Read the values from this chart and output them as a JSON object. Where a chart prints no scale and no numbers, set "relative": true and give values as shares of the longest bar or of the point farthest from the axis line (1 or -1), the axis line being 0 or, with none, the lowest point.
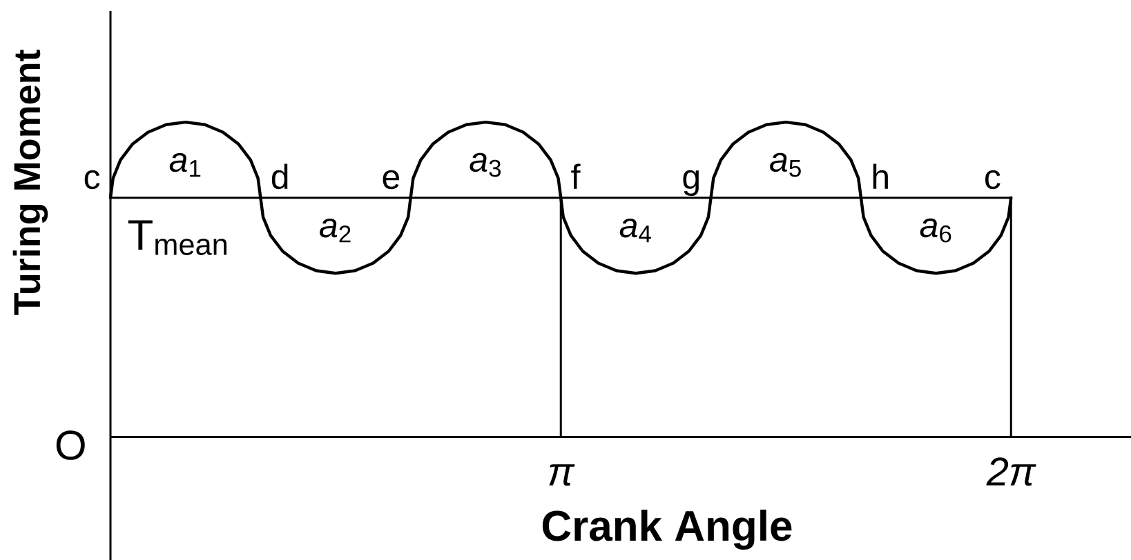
{
  "chart_data": {
    "type": "line",
    "xlabel": "Crank Angle",
    "ylabel": "Turing Moment",
    "relative": true,
    "x": [
      0,
      0.018,
      0.07,
      0.153,
      0.262,
      0.388,
      0.524,
      0.659,
      0.785,
      0.894,
      0.977,
      1.029,
      1.047,
      1.065,
      1.117,
      1.201,
      1.309,
      1.435,
      1.571,
      1.706,
      1.833,
      1.941,
      2.024,
      2.077,
      2.094,
      2.112,
      2.165,
      2.248,
      2.356,
      2.483,
      2.618,
      2.754,
      2.88,
      2.988,
      3.071,
      3.124,
      3.142,
      3.159,
      3.212,
      3.295,
      3.403,
      3.53,
      3.665,
      3.801,
      3.927,
      4.035,
      4.119,
      4.171,
      4.189,
      4.207,
      4.259,
      4.342,
      4.451,
      4.577,
      4.712,
      4.848,
      4.974,
      5.083,
      5.166,
      5.218,
      5.236,
      5.254,
      5.306,
      5.389,
      5.498,
      5.624,
      5.76,
      5.895,
      6.021,
      6.13,
      6.213,
      6.265,
      6.283
    ],
    "values": [
      0.76,
      0.822,
      0.88,
      0.93,
      0.968,
      0.992,
      1,
      0.992,
      0.968,
      0.93,
      0.88,
      0.822,
      0.76,
      0.698,
      0.64,
      0.59,
      0.552,
      0.528,
      0.52,
      0.528,
      0.552,
      0.59,
      0.64,
      0.698,
      0.76,
      0.822,
      0.88,
      0.93,
      0.968,
      0.992,
      1,
      0.992,
      0.968,
      0.93,
      0.88,
      0.822,
      0.76,
      0.698,
      0.64,
      0.59,
      0.552,
      0.528,
      0.52,
      0.528,
      0.552,
      0.59,
      0.64,
      0.698,
      0.76,
      0.822,
      0.88,
      0.93,
      0.968,
      0.992,
      1,
      0.992,
      0.968,
      0.93,
      0.88,
      0.822,
      0.76,
      0.698,
      0.64,
      0.59,
      0.552,
      0.528,
      0.52,
      0.528,
      0.552,
      0.59,
      0.64,
      0.698,
      0.76
    ],
    "color": "#000000",
    "line_style": "solid",
    "xlim": [
      0,
      7.12
    ],
    "xticks": [
      {
        "value": 3.142,
        "label": "π"
      },
      {
        "value": 6.283,
        "label": "2π"
      }
    ],
    "ref_lines": [
      {
        "axis": "y",
        "value": 0.76,
        "label": "T$_{mean}$"
      },
      {
        "axis": "x",
        "value": 3.142
      },
      {
        "axis": "x",
        "value": 6.283
      }
    ],
    "annotations": [
      "O",
      {
        "text": "c",
        "x": 0,
        "y": 0.76
      },
      {
        "text": "*a*$_{1}$",
        "x": 0.524,
        "y": 1
      },
      {
        "text": "d",
        "x": 1.047,
        "y": 0.76
      },
      {
        "text": "*a*$_{2}$",
        "x": 1.571,
        "y": 0.52
      },
      {
        "text": "e",
        "x": 2.094,
        "y": 0.76
      },
      {
        "text": "*a*$_{3}$",
        "x": 2.618,
        "y": 1
      },
      {
        "text": "f",
        "x": 3.142,
        "y": 0.76
      },
      {
        "text": "*a*$_{4}$",
        "x": 3.665,
        "y": 0.52
      },
      {
        "text": "g",
        "x": 4.189,
        "y": 0.76
      },
      {
        "text": "*a*$_{5}$",
        "x": 4.712,
        "y": 1
      },
      {
        "text": "h",
        "x": 5.236,
        "y": 0.76
      },
      {
        "text": "*a*$_{6}$",
        "x": 5.76,
        "y": 0.52
      },
      {
        "text": "c",
        "x": 6.283,
        "y": 0.76
      }
    ]
  }
}
